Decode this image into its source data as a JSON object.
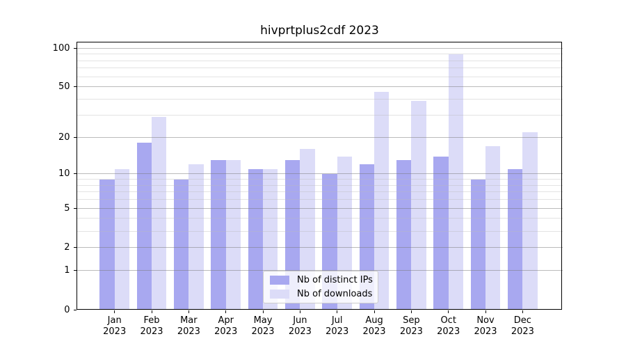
{
  "title": "hivprtplus2cdf 2023",
  "chart_data": {
    "type": "bar",
    "title": "hivprtplus2cdf 2023",
    "categories": [
      "Jan",
      "Feb",
      "Mar",
      "Apr",
      "May",
      "Jun",
      "Jul",
      "Aug",
      "Sep",
      "Oct",
      "Nov",
      "Dec"
    ],
    "year": "2023",
    "series": [
      {
        "name": "Nb of distinct IPs",
        "color": "#a8a8f0",
        "values": [
          9,
          18,
          9,
          13,
          11,
          13,
          10,
          12,
          13,
          14,
          9,
          11
        ]
      },
      {
        "name": "Nb of downloads",
        "color": "#dcdcf8",
        "values": [
          11,
          29,
          12,
          13,
          11,
          16,
          14,
          46,
          39,
          90,
          17,
          22
        ]
      }
    ],
    "y_axis": {
      "scale": "log1p",
      "tick_labels": [
        100,
        50,
        20,
        10,
        5,
        2,
        1,
        0
      ],
      "minor_ticks": [
        3,
        4,
        6,
        7,
        8,
        9,
        30,
        40,
        60,
        70,
        80,
        90
      ],
      "range_top": 112
    },
    "grid": true,
    "legend_position": "bottom-center"
  },
  "colors": {
    "background": "#ffffff",
    "spine": "#000000",
    "grid_major": "#c3c3c3",
    "grid_minor": "#e7e7e7",
    "bar_distinct_ips": "#a8a8f0",
    "bar_downloads": "#dcdcf8"
  }
}
